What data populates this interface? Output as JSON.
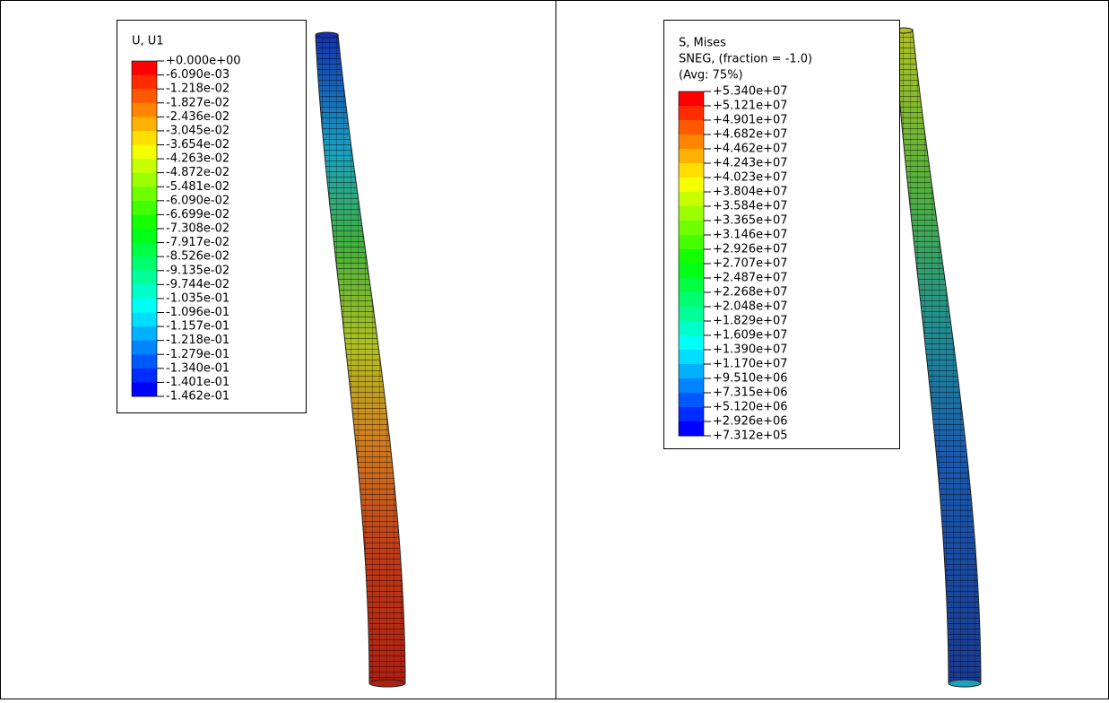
{
  "panels": [
    {
      "legend": {
        "title_lines": [
          "U, U1"
        ],
        "labels": [
          "+0.000e+00",
          "-6.090e-03",
          "-1.218e-02",
          "-1.827e-02",
          "-2.436e-02",
          "-3.045e-02",
          "-3.654e-02",
          "-4.263e-02",
          "-4.872e-02",
          "-5.481e-02",
          "-6.090e-02",
          "-6.699e-02",
          "-7.308e-02",
          "-7.917e-02",
          "-8.526e-02",
          "-9.135e-02",
          "-9.744e-02",
          "-1.035e-01",
          "-1.096e-01",
          "-1.157e-01",
          "-1.218e-01",
          "-1.279e-01",
          "-1.340e-01",
          "-1.401e-01",
          "-1.462e-01"
        ]
      }
    },
    {
      "legend": {
        "title_lines": [
          "S, Mises",
          "SNEG, (fraction = -1.0)",
          "(Avg: 75%)"
        ],
        "labels": [
          "+5.340e+07",
          "+5.121e+07",
          "+4.901e+07",
          "+4.682e+07",
          "+4.462e+07",
          "+4.243e+07",
          "+4.023e+07",
          "+3.804e+07",
          "+3.584e+07",
          "+3.365e+07",
          "+3.146e+07",
          "+2.926e+07",
          "+2.707e+07",
          "+2.487e+07",
          "+2.268e+07",
          "+2.048e+07",
          "+1.829e+07",
          "+1.609e+07",
          "+1.390e+07",
          "+1.170e+07",
          "+9.510e+06",
          "+7.315e+06",
          "+5.120e+06",
          "+2.926e+06",
          "+7.312e+05"
        ]
      }
    }
  ]
}
